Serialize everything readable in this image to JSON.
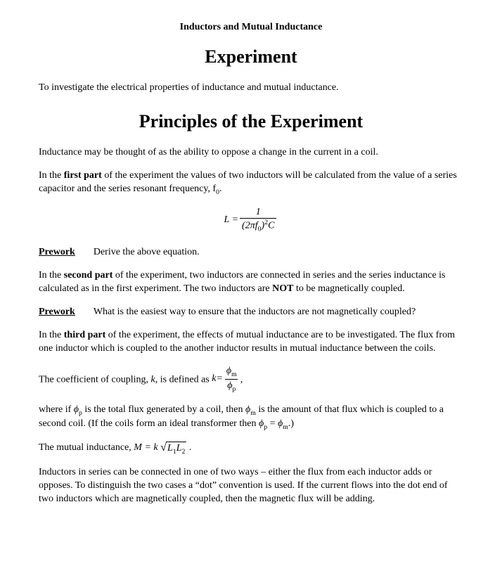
{
  "header_small": "Inductors and Mutual Inductance",
  "h1": "Experiment",
  "intro": "To investigate the electrical properties of inductance and mutual inductance.",
  "h2": "Principles of the Experiment",
  "p1": "Inductance may be thought of as the ability to oppose a change in the current in a coil.",
  "p2a": "In the ",
  "p2b_bold": "first part",
  "p2c": " of the experiment the values of two inductors will be calculated from the value of a series capacitor and the series resonant frequency, f",
  "p2d_sub": "0",
  "p2e": ".",
  "eq1": {
    "lhs": "L = ",
    "num": "1",
    "den_open": "(2",
    "den_pi": "π",
    "den_f": "f",
    "den_fsub": "0",
    "den_close": ")",
    "den_sup": "2",
    "den_C": "C"
  },
  "prework1_label": "Prework",
  "prework1_text": "Derive the above equation.",
  "p3a": "In the ",
  "p3b_bold": "second part",
  "p3c": " of the experiment, two inductors are connected in series and the series inductance is calculated as in the first experiment.  The two inductors are ",
  "p3d_bold": "NOT",
  "p3e": " to be magnetically coupled.",
  "prework2_label": "Prework",
  "prework2_text": "What is the easiest way to ensure that the inductors are not magnetically coupled?",
  "p4a": "In the ",
  "p4b_bold": "third part",
  "p4c": " of the experiment, the effects of mutual inductance are to be investigated.  The flux from one inductor which is coupled to the another inductor results in mutual inductance between the coils.",
  "p5a": "The coefficient of coupling, ",
  "p5b_k": "k",
  "p5c": ", is defined as  ",
  "eq2": {
    "lhs_k": "k",
    "eq": " = ",
    "num_phi": "ϕ",
    "num_sub": "m",
    "den_phi": "ϕ",
    "den_sub": "p"
  },
  "p5d": ",",
  "p6a": "where if ",
  "p6_phi1": "ϕ",
  "p6_phi1_sub": "p",
  "p6b": " is the total flux generated by a coil, then ",
  "p6_phi2": "ϕ",
  "p6_phi2_sub": "m",
  "p6c": " is the amount of that flux which is coupled to a second coil.  (If the coils form an ideal transformer then ",
  "p6_phi3": "ϕ",
  "p6_phi3_sub": "p",
  "p6d": " = ",
  "p6_phi4": "ϕ",
  "p6_phi4_sub": "m",
  "p6e": ".)",
  "p7a": "The mutual inductance,  ",
  "eq3": {
    "M": "M",
    "eq": " = ",
    "k": "k",
    "L1": "L",
    "L1sub": "1",
    "L2": "L",
    "L2sub": "2"
  },
  "p7b": " .",
  "p8": "Inductors in series can be connected in one of two ways – either the flux from each inductor adds or opposes.  To distinguish the two cases a “dot” convention is used.  If the current flows into the dot end of two inductors which are magnetically coupled, then the magnetic flux will be adding."
}
